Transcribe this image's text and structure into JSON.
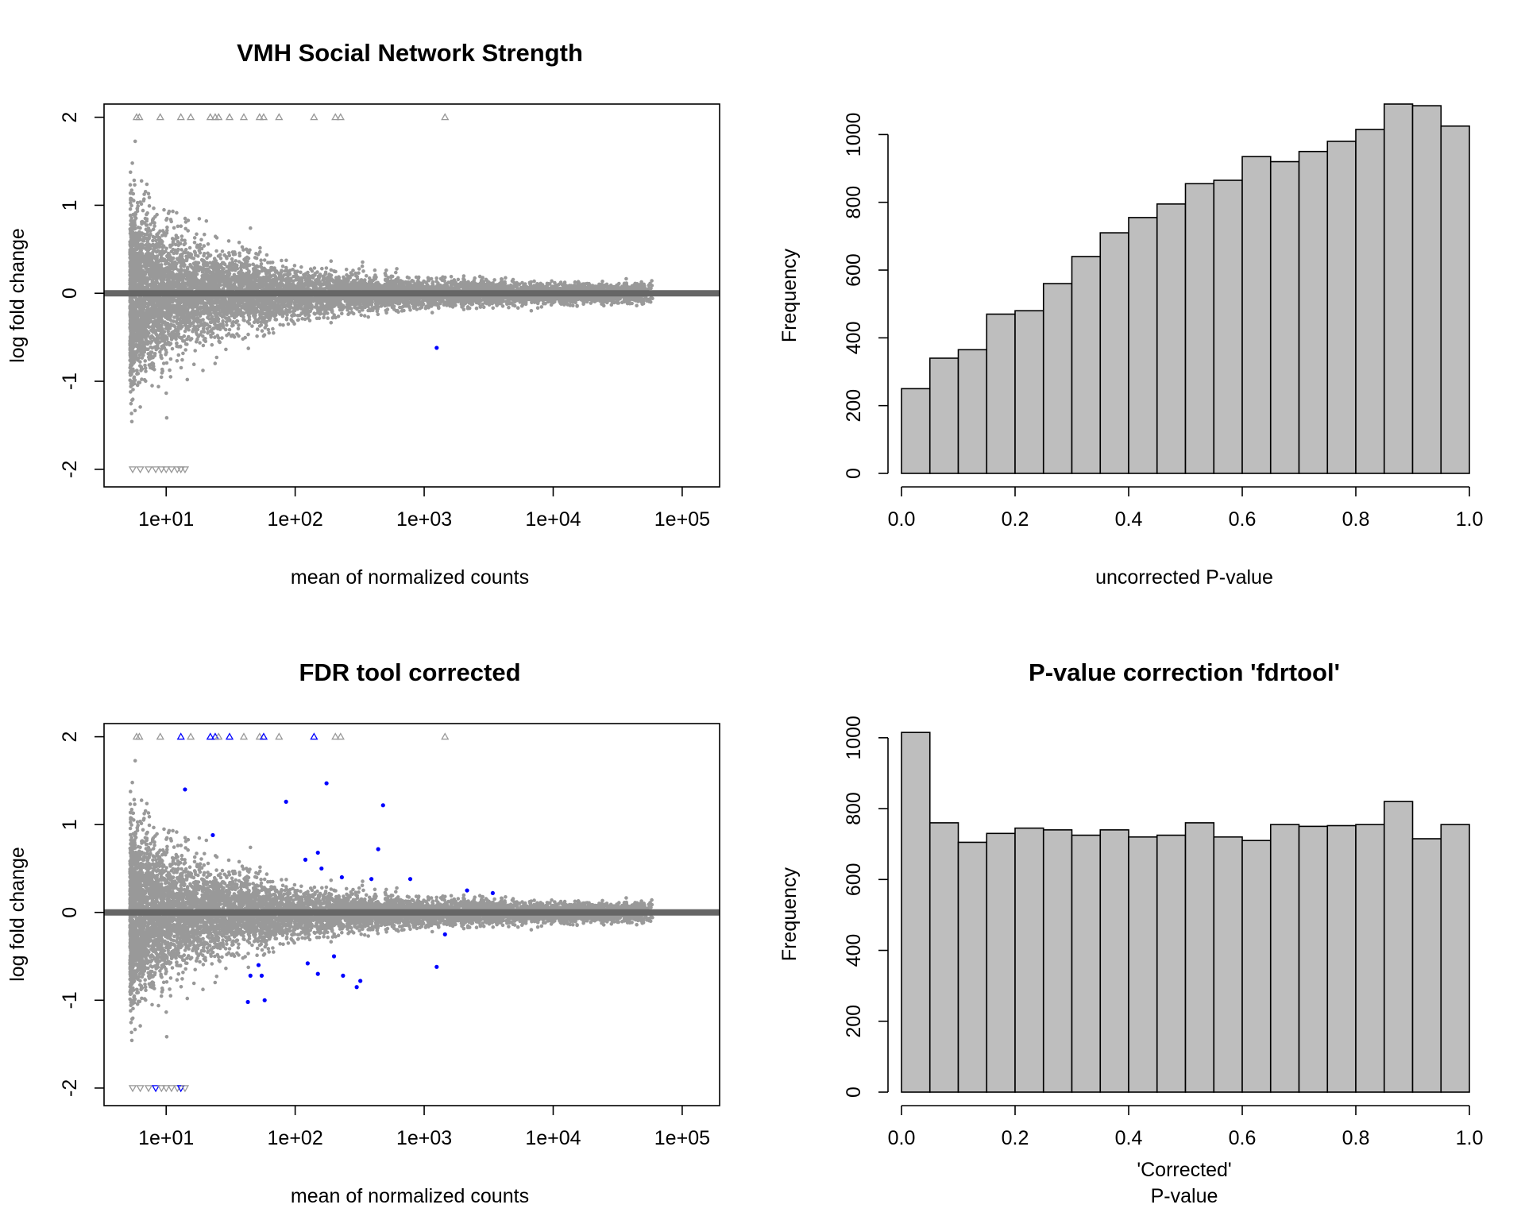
{
  "chart_data": [
    {
      "type": "scatter",
      "title": "VMH Social Network Strength",
      "xlabel": "mean of normalized counts",
      "ylabel": "log fold change",
      "x_scale": "log10",
      "xlim": [
        3.3,
        195000
      ],
      "ylim": [
        -2.2,
        2.15
      ],
      "x_ticks": [
        10,
        100,
        1000,
        10000,
        100000
      ],
      "x_tick_labels": [
        "1e+01",
        "1e+02",
        "1e+03",
        "1e+04",
        "1e+05"
      ],
      "y_ticks": [
        -2,
        -1,
        0,
        1,
        2
      ],
      "y_tick_labels": [
        "-2",
        "-1",
        "0",
        "1",
        "2"
      ],
      "hline": 0,
      "colors": {
        "nonsignificant": "#999999",
        "significant": "#0000ff",
        "zero_line": "#666666"
      },
      "clipped_up_x": [
        5.9,
        6.2,
        9,
        13,
        15.5,
        22,
        24,
        25.5,
        31,
        40,
        53,
        57,
        75,
        140,
        205,
        225,
        1450
      ],
      "clipped_down_x": [
        5.5,
        6.3,
        7.3,
        8.3,
        9.2,
        10,
        11,
        12.2,
        13,
        14
      ],
      "significant_points": [
        {
          "x": 1250,
          "y": -0.62
        }
      ]
    },
    {
      "type": "histogram",
      "title": "",
      "xlabel": "uncorrected P-value",
      "ylabel": "Frequency",
      "xlim": [
        0,
        1
      ],
      "ylim": [
        0,
        1090
      ],
      "bin_width": 0.05,
      "x_ticks": [
        0,
        0.2,
        0.4,
        0.6,
        0.8,
        1
      ],
      "x_tick_labels": [
        "0.0",
        "0.2",
        "0.4",
        "0.6",
        "0.8",
        "1.0"
      ],
      "y_ticks": [
        0,
        200,
        400,
        600,
        800,
        1000
      ],
      "y_tick_labels": [
        "0",
        "200",
        "400",
        "600",
        "800",
        "1000"
      ],
      "bar_color": "#bebebe",
      "values": [
        250,
        340,
        365,
        470,
        480,
        560,
        640,
        710,
        755,
        795,
        855,
        865,
        935,
        920,
        950,
        980,
        1015,
        1090,
        1085,
        1025
      ]
    },
    {
      "type": "scatter",
      "title": "FDR tool corrected",
      "xlabel": "mean of normalized counts",
      "ylabel": "log fold change",
      "x_scale": "log10",
      "xlim": [
        3.3,
        195000
      ],
      "ylim": [
        -2.2,
        2.15
      ],
      "x_ticks": [
        10,
        100,
        1000,
        10000,
        100000
      ],
      "x_tick_labels": [
        "1e+01",
        "1e+02",
        "1e+03",
        "1e+04",
        "1e+05"
      ],
      "y_ticks": [
        -2,
        -1,
        0,
        1,
        2
      ],
      "y_tick_labels": [
        "-2",
        "-1",
        "0",
        "1",
        "2"
      ],
      "hline": 0,
      "colors": {
        "nonsignificant": "#999999",
        "significant": "#0000ff",
        "zero_line": "#666666"
      },
      "clipped_up_x": [
        5.9,
        6.2,
        9,
        13,
        15.5,
        22,
        24,
        25.5,
        31,
        40,
        53,
        57,
        75,
        140,
        205,
        225,
        1450
      ],
      "clipped_down_x": [
        5.5,
        6.3,
        7.3,
        8.3,
        9.2,
        10,
        11,
        12.2,
        13,
        14
      ],
      "significant_up_x": [
        13,
        22,
        24,
        31,
        57,
        140
      ],
      "significant_down_x": [
        8.3,
        13
      ],
      "significant_points": [
        {
          "x": 14,
          "y": 1.4
        },
        {
          "x": 23,
          "y": 0.88
        },
        {
          "x": 85,
          "y": 1.26
        },
        {
          "x": 175,
          "y": 1.47
        },
        {
          "x": 480,
          "y": 1.22
        },
        {
          "x": 440,
          "y": 0.72
        },
        {
          "x": 150,
          "y": 0.68
        },
        {
          "x": 160,
          "y": 0.5
        },
        {
          "x": 120,
          "y": 0.6
        },
        {
          "x": 230,
          "y": 0.4
        },
        {
          "x": 390,
          "y": 0.38
        },
        {
          "x": 780,
          "y": 0.38
        },
        {
          "x": 2150,
          "y": 0.25
        },
        {
          "x": 3400,
          "y": 0.22
        },
        {
          "x": 1450,
          "y": -0.25
        },
        {
          "x": 1250,
          "y": -0.62
        },
        {
          "x": 52,
          "y": -0.6
        },
        {
          "x": 45,
          "y": -0.72
        },
        {
          "x": 55,
          "y": -0.72
        },
        {
          "x": 43,
          "y": -1.02
        },
        {
          "x": 58,
          "y": -1.0
        },
        {
          "x": 125,
          "y": -0.58
        },
        {
          "x": 150,
          "y": -0.7
        },
        {
          "x": 235,
          "y": -0.72
        },
        {
          "x": 320,
          "y": -0.78
        },
        {
          "x": 300,
          "y": -0.85
        },
        {
          "x": 200,
          "y": -0.5
        }
      ]
    },
    {
      "type": "histogram",
      "title": "P-value correction 'fdrtool'",
      "xlabel": "'Corrected'\nP-value",
      "xlabel_lines": [
        "'Corrected'",
        "P-value"
      ],
      "ylabel": "Frequency",
      "xlim": [
        0,
        1
      ],
      "ylim": [
        0,
        1040
      ],
      "bin_width": 0.05,
      "x_ticks": [
        0,
        0.2,
        0.4,
        0.6,
        0.8,
        1
      ],
      "x_tick_labels": [
        "0.0",
        "0.2",
        "0.4",
        "0.6",
        "0.8",
        "1.0"
      ],
      "y_ticks": [
        0,
        200,
        400,
        600,
        800,
        1000
      ],
      "y_tick_labels": [
        "0",
        "200",
        "400",
        "600",
        "800",
        "1000"
      ],
      "bar_color": "#bebebe",
      "values": [
        1015,
        760,
        705,
        730,
        745,
        740,
        725,
        740,
        720,
        725,
        760,
        720,
        710,
        755,
        750,
        752,
        755,
        820,
        715,
        755
      ]
    }
  ]
}
